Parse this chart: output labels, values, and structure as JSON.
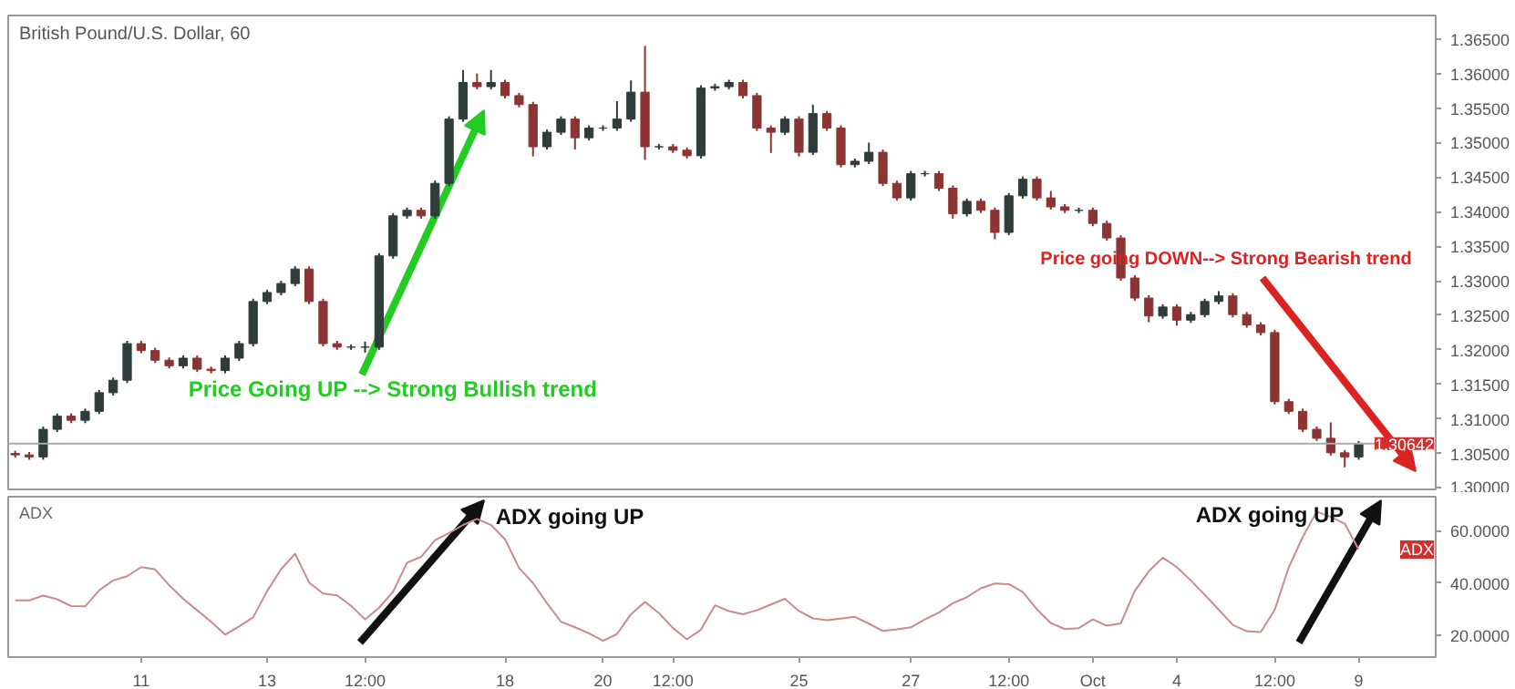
{
  "chart_data": [
    {
      "type": "candlestick",
      "title": "British Pound/U.S. Dollar, 60",
      "categories": [
        null,
        null,
        null,
        null,
        null,
        null,
        null,
        null,
        null,
        null,
        null,
        null,
        null,
        null,
        null,
        null,
        null,
        null,
        null,
        null,
        null,
        null,
        null,
        null,
        null,
        null,
        null,
        null,
        null,
        null,
        null,
        null,
        null,
        null,
        null,
        null,
        null,
        null,
        null,
        null,
        null,
        null,
        null,
        null,
        null,
        null,
        null,
        null,
        null,
        null,
        null,
        null,
        null,
        null,
        null,
        null,
        null,
        null,
        null,
        null,
        null,
        null,
        null,
        null,
        null,
        null,
        null,
        null,
        null,
        null,
        null,
        null,
        null,
        null,
        null,
        null,
        null,
        null,
        null,
        null,
        null,
        null,
        null,
        null,
        null,
        null,
        null,
        null,
        null,
        null,
        null,
        null,
        null,
        null,
        null,
        null,
        null
      ],
      "ohlc": [
        [
          1.305,
          1.3054,
          1.3044,
          1.3048
        ],
        [
          1.3048,
          1.3052,
          1.3041,
          1.3045
        ],
        [
          1.3045,
          1.3089,
          1.3041,
          1.3085
        ],
        [
          1.3085,
          1.3108,
          1.3081,
          1.3104
        ],
        [
          1.3104,
          1.3108,
          1.3094,
          1.3098
        ],
        [
          1.3098,
          1.3115,
          1.3094,
          1.3111
        ],
        [
          1.3111,
          1.3142,
          1.3107,
          1.3138
        ],
        [
          1.3138,
          1.316,
          1.3134,
          1.3156
        ],
        [
          1.3156,
          1.3213,
          1.3152,
          1.3209
        ],
        [
          1.3209,
          1.3213,
          1.3195,
          1.3199
        ],
        [
          1.3199,
          1.3203,
          1.3181,
          1.3185
        ],
        [
          1.3185,
          1.3189,
          1.3173,
          1.3177
        ],
        [
          1.3177,
          1.3192,
          1.3173,
          1.3188
        ],
        [
          1.3188,
          1.3192,
          1.3168,
          1.3172
        ],
        [
          1.3172,
          1.3176,
          1.3166,
          1.317
        ],
        [
          1.317,
          1.3192,
          1.3166,
          1.3188
        ],
        [
          1.3188,
          1.3213,
          1.3184,
          1.3209
        ],
        [
          1.3209,
          1.3274,
          1.3205,
          1.327
        ],
        [
          1.327,
          1.3287,
          1.3266,
          1.3283
        ],
        [
          1.3283,
          1.33,
          1.3279,
          1.3296
        ],
        [
          1.3296,
          1.3321,
          1.3292,
          1.3317
        ],
        [
          1.3317,
          1.3321,
          1.3266,
          1.327
        ],
        [
          1.327,
          1.3274,
          1.3205,
          1.3209
        ],
        [
          1.3209,
          1.3213,
          1.32,
          1.3204
        ],
        [
          1.3204,
          1.3208,
          1.32,
          1.3204
        ],
        [
          1.3204,
          1.3212,
          1.3196,
          1.3204
        ],
        [
          1.3204,
          1.334,
          1.32,
          1.3336
        ],
        [
          1.3336,
          1.3398,
          1.3332,
          1.3394
        ],
        [
          1.3394,
          1.3406,
          1.339,
          1.3402
        ],
        [
          1.3402,
          1.3406,
          1.339,
          1.3394
        ],
        [
          1.3394,
          1.3445,
          1.339,
          1.3441
        ],
        [
          1.3441,
          1.3538,
          1.3437,
          1.3534
        ],
        [
          1.3534,
          1.3605,
          1.353,
          1.3587
        ],
        [
          1.3587,
          1.36,
          1.3577,
          1.3581
        ],
        [
          1.3581,
          1.3605,
          1.3577,
          1.3587
        ],
        [
          1.3587,
          1.3591,
          1.3564,
          1.3568
        ],
        [
          1.3568,
          1.3572,
          1.3551,
          1.3555
        ],
        [
          1.3555,
          1.3559,
          1.348,
          1.3494
        ],
        [
          1.3494,
          1.3519,
          1.349,
          1.3515
        ],
        [
          1.3515,
          1.3538,
          1.3511,
          1.3534
        ],
        [
          1.3534,
          1.3538,
          1.349,
          1.3507
        ],
        [
          1.3507,
          1.3525,
          1.3503,
          1.3521
        ],
        [
          1.3521,
          1.3525,
          1.3517,
          1.3521
        ],
        [
          1.3521,
          1.356,
          1.3517,
          1.3534
        ],
        [
          1.3534,
          1.359,
          1.353,
          1.3573
        ],
        [
          1.3573,
          1.364,
          1.3475,
          1.3494
        ],
        [
          1.3494,
          1.3498,
          1.349,
          1.3494
        ],
        [
          1.3494,
          1.3498,
          1.3485,
          1.3489
        ],
        [
          1.3489,
          1.3493,
          1.3477,
          1.3481
        ],
        [
          1.3481,
          1.3583,
          1.3477,
          1.3579
        ],
        [
          1.3579,
          1.3585,
          1.3575,
          1.3581
        ],
        [
          1.3581,
          1.3591,
          1.3577,
          1.3587
        ],
        [
          1.3587,
          1.3591,
          1.3564,
          1.3568
        ],
        [
          1.3568,
          1.3572,
          1.3517,
          1.3521
        ],
        [
          1.3521,
          1.3525,
          1.3485,
          1.3515
        ],
        [
          1.3515,
          1.3538,
          1.3511,
          1.3534
        ],
        [
          1.3534,
          1.3538,
          1.348,
          1.3486
        ],
        [
          1.3486,
          1.3555,
          1.3482,
          1.3542
        ],
        [
          1.3542,
          1.3546,
          1.3517,
          1.3521
        ],
        [
          1.3521,
          1.3525,
          1.3464,
          1.3468
        ],
        [
          1.3468,
          1.3477,
          1.3464,
          1.3473
        ],
        [
          1.3473,
          1.35,
          1.3469,
          1.3486
        ],
        [
          1.3486,
          1.349,
          1.3437,
          1.3441
        ],
        [
          1.3441,
          1.3445,
          1.3416,
          1.342
        ],
        [
          1.342,
          1.3459,
          1.3416,
          1.3455
        ],
        [
          1.3455,
          1.3459,
          1.3451,
          1.3455
        ],
        [
          1.3455,
          1.3459,
          1.343,
          1.3434
        ],
        [
          1.3434,
          1.3438,
          1.339,
          1.3397
        ],
        [
          1.3397,
          1.3419,
          1.3393,
          1.3415
        ],
        [
          1.3415,
          1.3419,
          1.3398,
          1.3402
        ],
        [
          1.3402,
          1.3406,
          1.336,
          1.337
        ],
        [
          1.337,
          1.3427,
          1.3366,
          1.3423
        ],
        [
          1.3423,
          1.3451,
          1.3419,
          1.3447
        ],
        [
          1.3447,
          1.3451,
          1.3416,
          1.342
        ],
        [
          1.342,
          1.343,
          1.3403,
          1.3407
        ],
        [
          1.3407,
          1.3411,
          1.3398,
          1.3402
        ],
        [
          1.3402,
          1.3406,
          1.3398,
          1.3402
        ],
        [
          1.3402,
          1.3406,
          1.3379,
          1.3383
        ],
        [
          1.3383,
          1.3387,
          1.3358,
          1.3362
        ],
        [
          1.3362,
          1.3366,
          1.33,
          1.3304
        ],
        [
          1.3304,
          1.3308,
          1.3271,
          1.3275
        ],
        [
          1.3275,
          1.3279,
          1.324,
          1.3249
        ],
        [
          1.3249,
          1.3266,
          1.3245,
          1.3262
        ],
        [
          1.3262,
          1.3266,
          1.3235,
          1.3243
        ],
        [
          1.3243,
          1.3255,
          1.3239,
          1.3251
        ],
        [
          1.3251,
          1.3274,
          1.3247,
          1.327
        ],
        [
          1.327,
          1.3285,
          1.3266,
          1.3278
        ],
        [
          1.3278,
          1.3282,
          1.3247,
          1.3251
        ],
        [
          1.3251,
          1.3255,
          1.3232,
          1.3236
        ],
        [
          1.3236,
          1.324,
          1.3221,
          1.3225
        ],
        [
          1.3225,
          1.3229,
          1.3121,
          1.3125
        ],
        [
          1.3125,
          1.3129,
          1.3107,
          1.3111
        ],
        [
          1.3111,
          1.3115,
          1.3081,
          1.3085
        ],
        [
          1.3085,
          1.3089,
          1.3068,
          1.3072
        ],
        [
          1.3072,
          1.3095,
          1.3047,
          1.3051
        ],
        [
          1.3051,
          1.3055,
          1.303,
          1.3045
        ],
        [
          1.3045,
          1.3068,
          1.3041,
          1.3064
        ]
      ],
      "ylim": [
        1.2998,
        1.3684
      ],
      "yticks": [
        {
          "value": 1.3,
          "label": "1.30000"
        },
        {
          "value": 1.305,
          "label": "1.30500"
        },
        {
          "value": 1.31,
          "label": "1.31000"
        },
        {
          "value": 1.315,
          "label": "1.31500"
        },
        {
          "value": 1.32,
          "label": "1.32000"
        },
        {
          "value": 1.325,
          "label": "1.32500"
        },
        {
          "value": 1.33,
          "label": "1.33000"
        },
        {
          "value": 1.335,
          "label": "1.33500"
        },
        {
          "value": 1.34,
          "label": "1.34000"
        },
        {
          "value": 1.345,
          "label": "1.34500"
        },
        {
          "value": 1.35,
          "label": "1.35000"
        },
        {
          "value": 1.355,
          "label": "1.35500"
        },
        {
          "value": 1.36,
          "label": "1.36000"
        },
        {
          "value": 1.365,
          "label": "1.36500"
        }
      ],
      "tick_labels": "y",
      "ref_lines": [
        {
          "axis": "y",
          "value": 1.30642,
          "label": "1.30642",
          "color": "#aaaaaa"
        }
      ],
      "annotations": [
        "Price Going UP --> Strong Bullish trend",
        "Price going DOWN--> Strong Bearish trend"
      ]
    },
    {
      "type": "line",
      "categories": [
        null,
        null,
        null,
        null,
        null,
        null,
        null,
        null,
        null,
        "11",
        null,
        null,
        null,
        null,
        null,
        null,
        null,
        null,
        "13",
        null,
        null,
        null,
        null,
        null,
        null,
        "12:00",
        null,
        null,
        null,
        null,
        null,
        null,
        null,
        null,
        null,
        "18",
        null,
        null,
        null,
        null,
        null,
        null,
        "20",
        null,
        null,
        null,
        null,
        "12:00",
        null,
        null,
        null,
        null,
        null,
        null,
        null,
        null,
        "25",
        null,
        null,
        null,
        null,
        null,
        null,
        null,
        "27",
        null,
        null,
        null,
        null,
        null,
        null,
        "12:00",
        null,
        null,
        null,
        null,
        null,
        "Oct",
        null,
        null,
        null,
        null,
        null,
        "4",
        null,
        null,
        null,
        null,
        null,
        null,
        "12:00",
        null,
        null,
        null,
        null,
        null,
        "9"
      ],
      "series": [
        {
          "name": "ADX",
          "color": "#c98c8c",
          "values": [
            33.4,
            33.4,
            35.2,
            33.8,
            31.2,
            31.1,
            37.2,
            41.0,
            42.6,
            46.1,
            45.2,
            39.2,
            34.0,
            29.6,
            25.2,
            20.3,
            23.4,
            26.9,
            36.9,
            45.3,
            51.2,
            40.2,
            36.0,
            35.3,
            31.3,
            26.1,
            30.6,
            36.7,
            47.8,
            50.0,
            56.4,
            59.1,
            62.2,
            64.5,
            62.2,
            56.7,
            45.8,
            40.0,
            32.3,
            25.2,
            23.1,
            20.8,
            17.9,
            20.5,
            28.1,
            32.8,
            28.5,
            22.8,
            18.5,
            22.2,
            31.5,
            29.3,
            28.1,
            29.6,
            31.8,
            34.0,
            29.3,
            26.5,
            25.8,
            26.4,
            27.1,
            24.5,
            21.7,
            22.3,
            23.1,
            26.1,
            28.7,
            32.3,
            34.6,
            38.0,
            39.8,
            39.6,
            36.6,
            30.0,
            24.7,
            22.4,
            22.8,
            26.1,
            23.7,
            24.6,
            37.0,
            44.5,
            49.7,
            46.1,
            41.0,
            35.5,
            29.8,
            24.0,
            21.6,
            21.3,
            29.8,
            46.0,
            57.6,
            67.3,
            65.3,
            62.7,
            52.8
          ]
        }
      ],
      "ylim": [
        11.7,
        73
      ],
      "yticks": [
        {
          "value": 20,
          "label": "20.0000"
        },
        {
          "value": 40,
          "label": "40.0000"
        },
        {
          "value": 60,
          "label": "60.0000"
        }
      ],
      "annotations": [
        "ADX going UP",
        "ADX going UP"
      ]
    }
  ]
}
